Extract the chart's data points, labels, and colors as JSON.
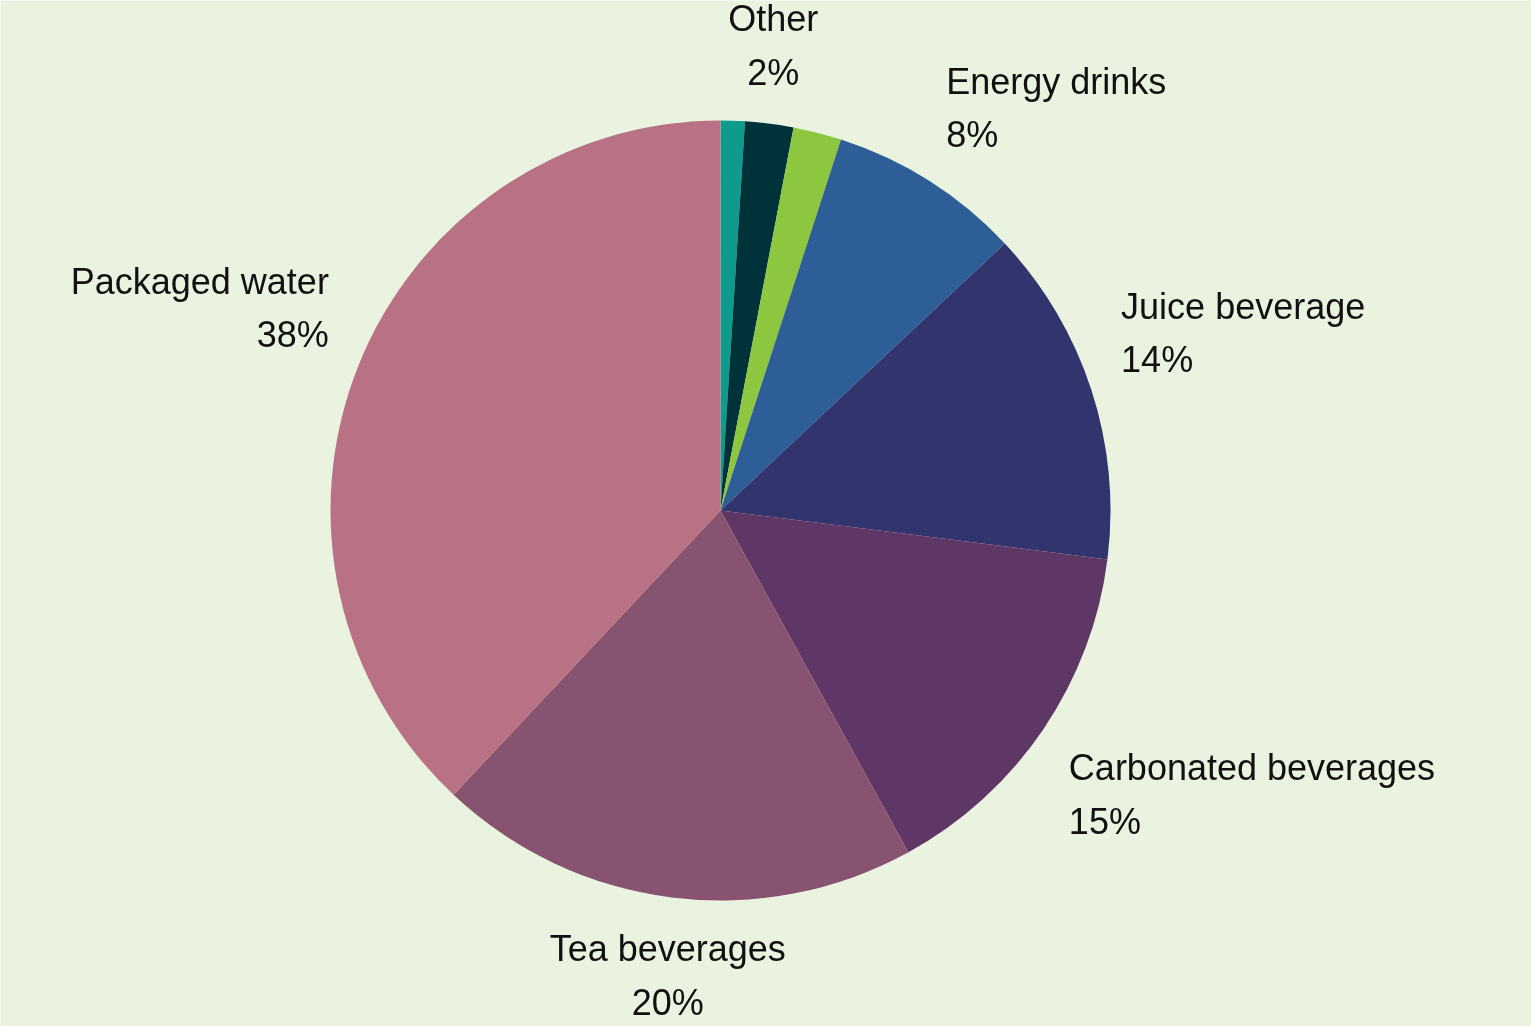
{
  "chart_data": {
    "type": "pie",
    "categories": [
      null,
      "Other",
      null,
      "Energy drinks",
      "Juice beverage",
      "Carbonated beverages",
      "Tea beverages",
      "Packaged water"
    ],
    "values": [
      1,
      2,
      2,
      8,
      14,
      15,
      20,
      38
    ],
    "value_labels": [
      null,
      "2%",
      null,
      "8%",
      "14%",
      "15%",
      "20%",
      "38%"
    ],
    "colors": [
      "#0e9a8c",
      "#00323a",
      "#8dc63f",
      "#2e5e97",
      "#31346d",
      "#5e3766",
      "#885271",
      "#b87284"
    ]
  }
}
